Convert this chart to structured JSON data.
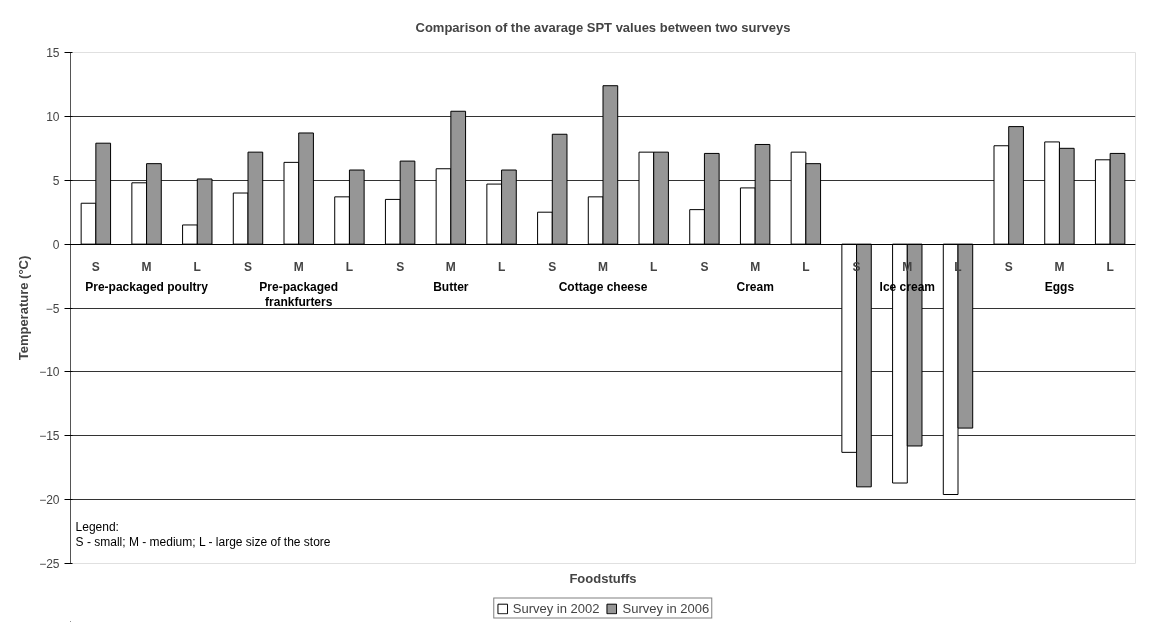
{
  "chart_data": {
    "type": "bar",
    "title": "Comparison of the avarage SPT values between two surveys",
    "xlabel": "Foodstuffs",
    "ylabel": "Temperature (°C)",
    "categories": [
      "S",
      "M",
      "L",
      "S",
      "M",
      "L",
      "S",
      "M",
      "L",
      "S",
      "M",
      "L",
      "S",
      "M",
      "L",
      "S",
      "M",
      "L",
      "S",
      "M",
      "L"
    ],
    "series": [
      {
        "name": "Survey in 2002",
        "color": "#ffffff",
        "values": [
          3.2,
          4.8,
          1.5,
          4.0,
          6.4,
          3.7,
          3.5,
          5.9,
          4.7,
          2.5,
          3.7,
          7.2,
          2.7,
          4.4,
          7.2,
          -16.3,
          -18.7,
          -19.6,
          7.7,
          8.0,
          6.6
        ]
      },
      {
        "name": "Survey in 2006",
        "color": "#969696",
        "values": [
          7.9,
          6.3,
          5.1,
          7.2,
          8.7,
          5.8,
          6.5,
          10.4,
          5.8,
          8.6,
          12.4,
          7.2,
          7.1,
          7.8,
          6.3,
          -19.0,
          -15.8,
          -14.4,
          9.2,
          7.5,
          7.1
        ]
      }
    ],
    "ylim": [
      -25,
      15
    ],
    "yticks": [
      -25,
      -20,
      -15,
      -10,
      -5,
      0,
      5,
      10,
      15
    ],
    "grid": "y",
    "legend": "bottom",
    "annotations": [
      "Pre-packaged poultry",
      "Pre-packaged frankfurters",
      "Butter",
      "Cottage cheese",
      "Cream",
      "Ice cream",
      "Eggs",
      "Legend:",
      "S - small; M - medium; L - large size of the store"
    ]
  }
}
